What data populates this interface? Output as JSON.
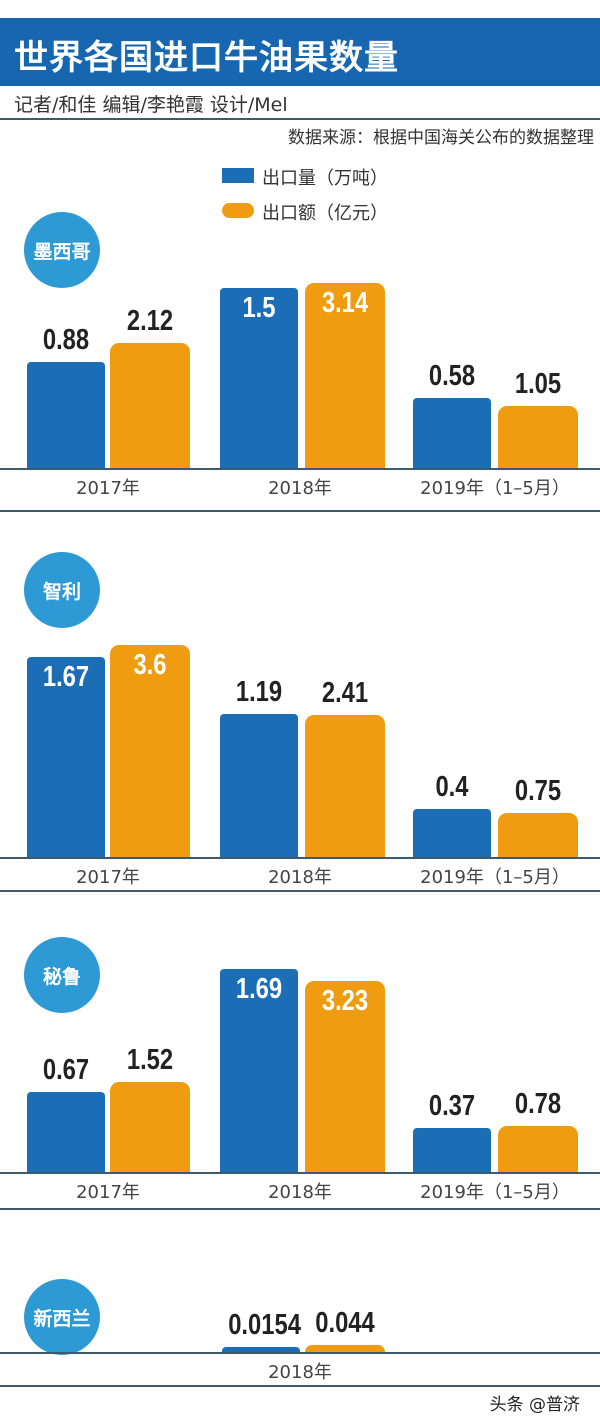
{
  "header": {
    "title": "世界各国进口牛油果数量",
    "byline": "记者/和佳   编辑/李艳霞   设计/Mel",
    "source": "数据来源：根据中国海关公布的数据整理"
  },
  "colors": {
    "title_band": "#1767b0",
    "volume": "#1b6db5",
    "value": "#f09c10",
    "country_circle": "#2d9ad6"
  },
  "chart_data": [
    {
      "type": "bar",
      "title": "墨西哥",
      "categories": [
        "2017年",
        "2018年",
        "2019年（1–5月）"
      ],
      "series": [
        {
          "name": "出口量（万吨）",
          "values": [
            "0.88",
            "1.5",
            "0.58"
          ]
        },
        {
          "name": "出口额（亿元）",
          "values": [
            "2.12",
            "3.14",
            "1.05"
          ]
        }
      ]
    },
    {
      "type": "bar",
      "title": "智利",
      "categories": [
        "2017年",
        "2018年",
        "2019年（1–5月）"
      ],
      "series": [
        {
          "name": "出口量（万吨）",
          "values": [
            "1.67",
            "1.19",
            "0.4"
          ]
        },
        {
          "name": "出口额（亿元）",
          "values": [
            "3.6",
            "2.41",
            "0.75"
          ]
        }
      ]
    },
    {
      "type": "bar",
      "title": "秘鲁",
      "categories": [
        "2017年",
        "2018年",
        "2019年（1–5月）"
      ],
      "series": [
        {
          "name": "出口量（万吨）",
          "values": [
            "0.67",
            "1.69",
            "0.37"
          ]
        },
        {
          "name": "出口额（亿元）",
          "values": [
            "1.52",
            "3.23",
            "0.78"
          ]
        }
      ]
    },
    {
      "type": "bar",
      "title": "新西兰",
      "categories": [
        "2018年"
      ],
      "series": [
        {
          "name": "出口量（万吨）",
          "values": [
            "0.0154"
          ]
        },
        {
          "name": "出口额（亿元）",
          "values": [
            "0.044"
          ]
        }
      ]
    }
  ],
  "legend": [
    {
      "label": "出口量（万吨）"
    },
    {
      "label": "出口额（亿元）"
    }
  ],
  "footer": "头条 @普济"
}
